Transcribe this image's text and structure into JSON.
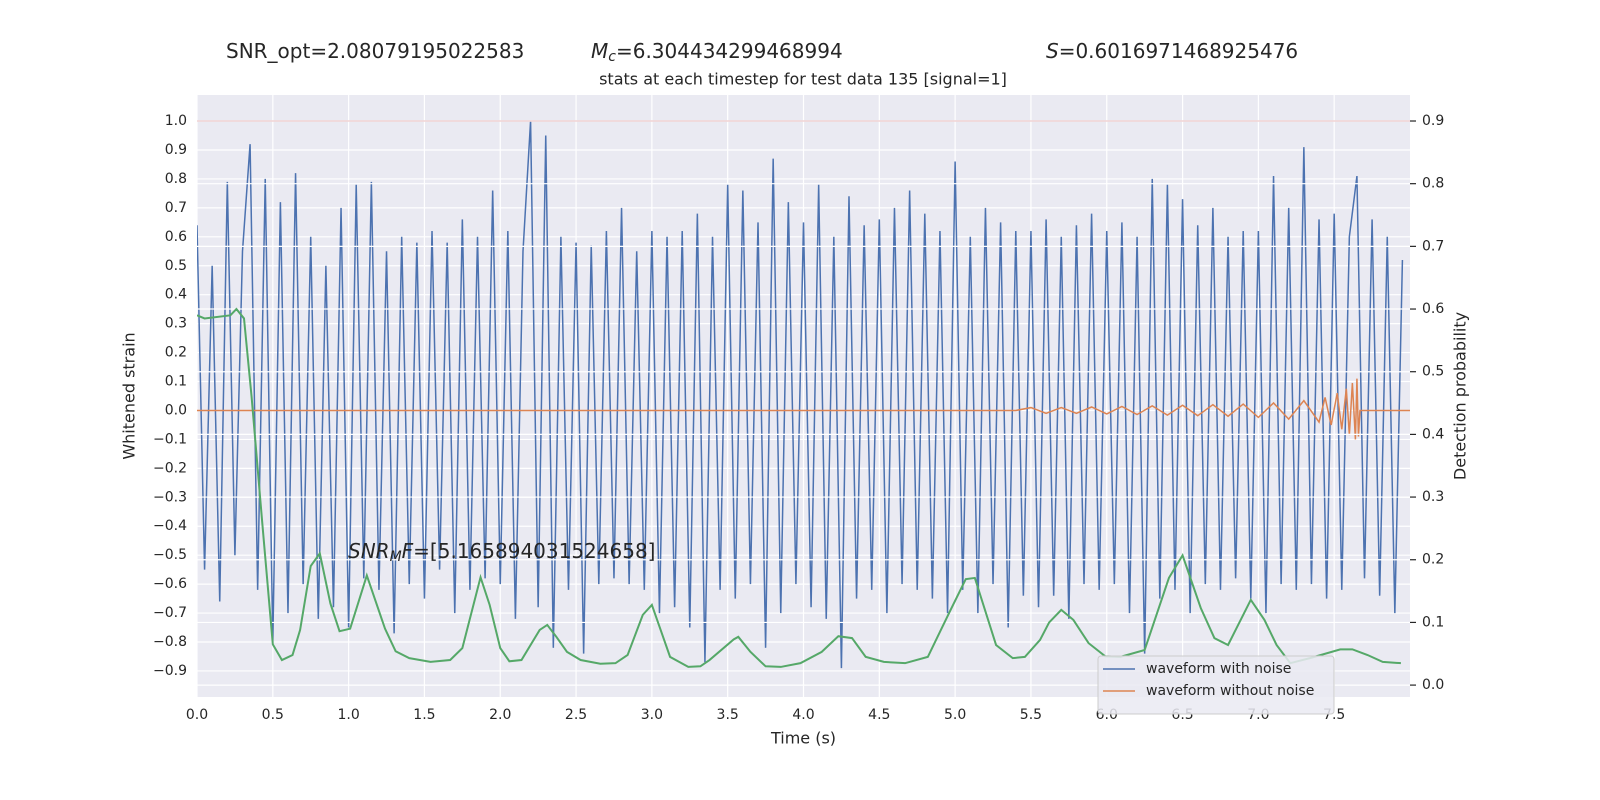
{
  "chart_data": {
    "type": "line",
    "headers": [
      {
        "text": "SNR_opt=2.08079195022583"
      },
      {
        "symbol": "M",
        "subscript": "c",
        "text": "=6.304434299468994"
      },
      {
        "symbol": "S",
        "text": "=0.6016971468925476"
      }
    ],
    "subtitle": "stats at each timestep for test data 135 [signal=1]",
    "annotations": [
      {
        "symbol": "SNR",
        "subscript": "M",
        "suffix": "F",
        "text": "=[5.165894031524658]"
      }
    ],
    "xlabel": "Time (s)",
    "ylabel": "Whitened strain",
    "y2label": "Detection probability",
    "xlim": [
      0,
      8.0
    ],
    "ylim": [
      -0.99,
      1.09
    ],
    "y2lim": [
      -0.019,
      0.9415
    ],
    "xticks": [
      {
        "value": 0,
        "label": "0.0"
      },
      0.5,
      {
        "value": 1,
        "label": "1.0"
      },
      1.5,
      {
        "value": 2,
        "label": "2.0"
      },
      2.5,
      {
        "value": 3,
        "label": "3.0"
      },
      3.5,
      {
        "value": 4,
        "label": "4.0"
      },
      4.5,
      {
        "value": 5,
        "label": "5.0"
      },
      5.5,
      {
        "value": 6,
        "label": "6.0"
      },
      6.5,
      {
        "value": 7,
        "label": "7.0"
      },
      7.5
    ],
    "yticks": [
      {
        "value": -0.9,
        "label": "−0.9"
      },
      {
        "value": -0.8,
        "label": "−0.8"
      },
      {
        "value": -0.7,
        "label": "−0.7"
      },
      {
        "value": -0.6,
        "label": "−0.6"
      },
      {
        "value": -0.5,
        "label": "−0.5"
      },
      {
        "value": -0.4,
        "label": "−0.4"
      },
      {
        "value": -0.3,
        "label": "−0.3"
      },
      {
        "value": -0.2,
        "label": "−0.2"
      },
      {
        "value": -0.1,
        "label": "−0.1"
      },
      {
        "value": 0,
        "label": "0.0"
      },
      0.1,
      0.2,
      0.3,
      0.4,
      0.5,
      0.6,
      0.7,
      0.8,
      0.9,
      {
        "value": 1,
        "label": "1.0"
      }
    ],
    "y2ticks": [
      {
        "value": 0,
        "label": "0.0"
      },
      0.1,
      0.2,
      0.3,
      0.4,
      0.5,
      0.6,
      0.7,
      0.8,
      0.9
    ],
    "grid": true,
    "legend": "lower right",
    "hlines": [
      {
        "y": 1.0,
        "color": "#c44e52"
      }
    ],
    "series": [
      {
        "name": "waveform with noise",
        "color": "#4c72b0",
        "x": [
          0,
          0.05,
          0.1,
          0.15,
          0.2,
          0.25,
          0.3,
          0.35,
          0.4,
          0.45,
          0.5,
          0.55,
          0.6,
          0.65,
          0.7,
          0.75,
          0.8,
          0.85,
          0.9,
          0.95,
          1.0,
          1.05,
          1.1,
          1.15,
          1.2,
          1.25,
          1.3,
          1.35,
          1.4,
          1.45,
          1.5,
          1.55,
          1.6,
          1.65,
          1.7,
          1.75,
          1.8,
          1.85,
          1.9,
          1.95,
          2.0,
          2.05,
          2.1,
          2.15,
          2.2,
          2.25,
          2.3,
          2.35,
          2.4,
          2.45,
          2.5,
          2.55,
          2.6,
          2.65,
          2.7,
          2.75,
          2.8,
          2.85,
          2.9,
          2.95,
          3.0,
          3.05,
          3.1,
          3.15,
          3.2,
          3.25,
          3.3,
          3.35,
          3.4,
          3.45,
          3.5,
          3.55,
          3.6,
          3.65,
          3.7,
          3.75,
          3.8,
          3.85,
          3.9,
          3.95,
          4.0,
          4.05,
          4.1,
          4.15,
          4.2,
          4.25,
          4.3,
          4.35,
          4.4,
          4.45,
          4.5,
          4.55,
          4.6,
          4.65,
          4.7,
          4.75,
          4.8,
          4.85,
          4.9,
          4.95,
          5.0,
          5.05,
          5.1,
          5.15,
          5.2,
          5.25,
          5.3,
          5.35,
          5.4,
          5.45,
          5.5,
          5.55,
          5.6,
          5.65,
          5.7,
          5.75,
          5.8,
          5.85,
          5.9,
          5.95,
          6.0,
          6.05,
          6.1,
          6.15,
          6.2,
          6.25,
          6.3,
          6.35,
          6.4,
          6.45,
          6.5,
          6.55,
          6.6,
          6.65,
          6.7,
          6.75,
          6.8,
          6.85,
          6.9,
          6.95,
          7.0,
          7.05,
          7.1,
          7.15,
          7.2,
          7.25,
          7.3,
          7.35,
          7.4,
          7.45,
          7.5,
          7.55,
          7.6,
          7.65,
          7.7,
          7.75,
          7.8,
          7.85,
          7.9,
          7.95
        ],
        "values": [
          0.64,
          -0.55,
          0.5,
          -0.66,
          0.79,
          -0.5,
          0.55,
          0.92,
          -0.62,
          0.8,
          -0.8,
          0.72,
          -0.7,
          0.82,
          -0.6,
          0.6,
          -0.72,
          0.5,
          -0.68,
          0.7,
          -0.75,
          0.78,
          -0.58,
          0.79,
          -0.62,
          0.55,
          -0.77,
          0.6,
          -0.6,
          0.58,
          -0.65,
          0.62,
          -0.55,
          0.58,
          -0.7,
          0.66,
          -0.62,
          0.6,
          -0.58,
          0.76,
          -0.6,
          0.62,
          -0.72,
          0.55,
          1.0,
          -0.68,
          0.95,
          -0.82,
          0.6,
          -0.62,
          0.58,
          -0.84,
          0.57,
          -0.6,
          0.62,
          -0.58,
          0.7,
          -0.6,
          0.55,
          -0.62,
          0.62,
          -0.7,
          0.6,
          -0.68,
          0.62,
          -0.75,
          0.68,
          -0.87,
          0.6,
          -0.62,
          0.78,
          -0.65,
          0.76,
          -0.6,
          0.65,
          -0.82,
          0.87,
          -0.7,
          0.72,
          -0.6,
          0.65,
          -0.68,
          0.78,
          -0.72,
          0.6,
          -0.89,
          0.74,
          -0.65,
          0.64,
          -0.62,
          0.66,
          -0.7,
          0.7,
          -0.6,
          0.76,
          -0.62,
          0.68,
          -0.65,
          0.62,
          -0.7,
          0.86,
          -0.62,
          0.6,
          -0.7,
          0.7,
          -0.6,
          0.65,
          -0.75,
          0.62,
          -0.64,
          0.62,
          -0.68,
          0.66,
          -0.64,
          0.6,
          -0.72,
          0.64,
          -0.6,
          0.68,
          -0.62,
          0.62,
          -0.6,
          0.65,
          -0.7,
          0.6,
          -0.84,
          0.8,
          -0.65,
          0.78,
          -0.62,
          0.73,
          -0.7,
          0.64,
          -0.6,
          0.7,
          -0.62,
          0.6,
          -0.58,
          0.62,
          -0.65,
          0.62,
          -0.7,
          0.81,
          -0.6,
          0.7,
          -0.62,
          0.91,
          -0.6,
          0.66,
          -0.65,
          0.68,
          -0.62,
          0.6,
          0.81,
          -0.58,
          0.66,
          -0.64,
          0.6,
          -0.7,
          0.52
        ]
      },
      {
        "name": "waveform without noise",
        "color": "#dd8452",
        "x": [
          0,
          5.4,
          5.5,
          5.6,
          5.7,
          5.8,
          5.9,
          6.0,
          6.1,
          6.2,
          6.3,
          6.4,
          6.5,
          6.6,
          6.7,
          6.8,
          6.9,
          7.0,
          7.1,
          7.2,
          7.3,
          7.4,
          7.44,
          7.48,
          7.52,
          7.55,
          7.58,
          7.6,
          7.62,
          7.64,
          7.65,
          7.66,
          7.67,
          8.0
        ],
        "values": [
          0,
          0,
          0.01,
          -0.01,
          0.01,
          -0.01,
          0.012,
          -0.012,
          0.014,
          -0.014,
          0.016,
          -0.016,
          0.018,
          -0.018,
          0.02,
          -0.02,
          0.022,
          -0.024,
          0.026,
          -0.03,
          0.034,
          -0.04,
          0.045,
          -0.05,
          0.06,
          -0.065,
          0.075,
          -0.085,
          0.095,
          -0.1,
          0.11,
          -0.09,
          0,
          0
        ]
      },
      {
        "color": "#55a868",
        "axis": "y2",
        "x": [
          0,
          0.05,
          0.22,
          0.26,
          0.31,
          0.36,
          0.43,
          0.5,
          0.56,
          0.63,
          0.68,
          0.75,
          0.81,
          0.88,
          0.94,
          1.01,
          1.12,
          1.24,
          1.31,
          1.4,
          1.54,
          1.67,
          1.75,
          1.87,
          1.93,
          2.0,
          2.06,
          2.14,
          2.26,
          2.31,
          2.37,
          2.44,
          2.53,
          2.66,
          2.76,
          2.84,
          2.94,
          3.0,
          3.12,
          3.24,
          3.32,
          3.38,
          3.54,
          3.57,
          3.65,
          3.75,
          3.85,
          3.98,
          4.12,
          4.23,
          4.32,
          4.41,
          4.53,
          4.67,
          4.82,
          4.97,
          5.07,
          5.13,
          5.27,
          5.38,
          5.46,
          5.56,
          5.62,
          5.7,
          5.78,
          5.88,
          5.99,
          6.09,
          6.25,
          6.41,
          6.5,
          6.62,
          6.71,
          6.8,
          6.95,
          7.04,
          7.12,
          7.21,
          7.34,
          7.54,
          7.62,
          7.72,
          7.82,
          7.94
        ],
        "values": [
          0.59,
          0.585,
          0.59,
          0.6,
          0.585,
          0.46,
          0.26,
          0.065,
          0.04,
          0.048,
          0.088,
          0.19,
          0.21,
          0.13,
          0.086,
          0.09,
          0.175,
          0.09,
          0.054,
          0.043,
          0.037,
          0.04,
          0.059,
          0.172,
          0.128,
          0.059,
          0.038,
          0.04,
          0.088,
          0.096,
          0.077,
          0.053,
          0.04,
          0.034,
          0.035,
          0.048,
          0.112,
          0.128,
          0.045,
          0.029,
          0.03,
          0.04,
          0.073,
          0.077,
          0.053,
          0.03,
          0.029,
          0.035,
          0.053,
          0.078,
          0.075,
          0.045,
          0.037,
          0.035,
          0.045,
          0.12,
          0.169,
          0.171,
          0.064,
          0.043,
          0.045,
          0.072,
          0.1,
          0.12,
          0.104,
          0.067,
          0.046,
          0.045,
          0.056,
          0.171,
          0.207,
          0.123,
          0.075,
          0.064,
          0.136,
          0.104,
          0.064,
          0.035,
          0.043,
          0.057,
          0.057,
          0.048,
          0.037,
          0.035
        ]
      }
    ]
  }
}
